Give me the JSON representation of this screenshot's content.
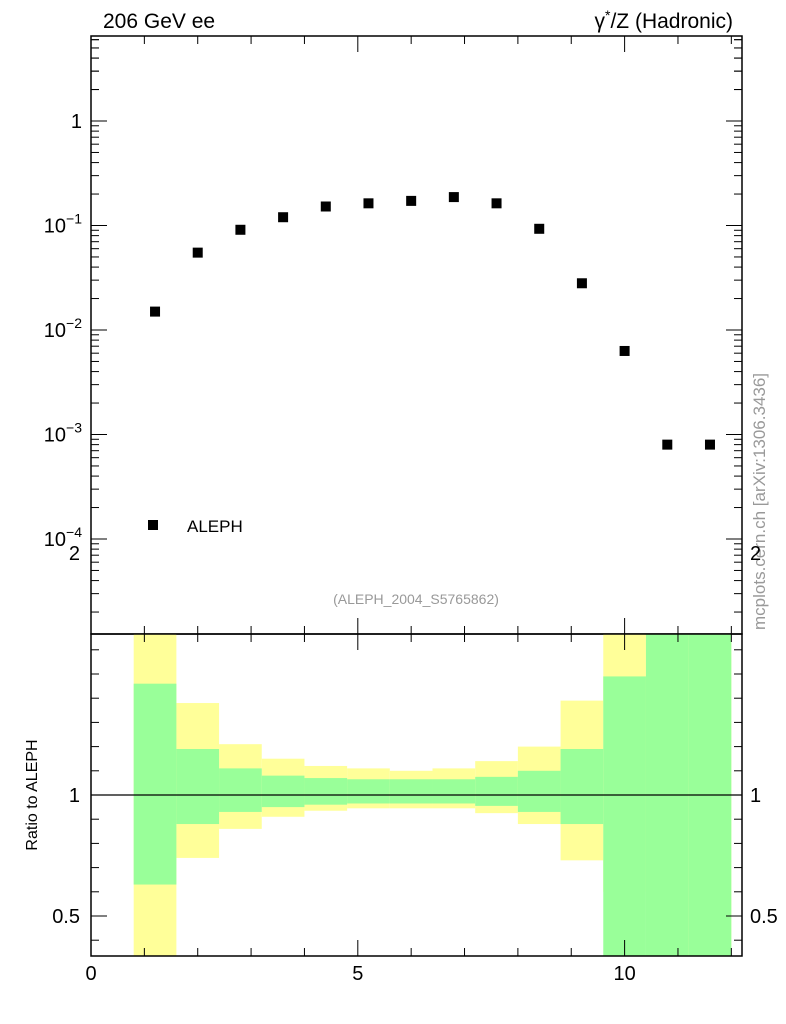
{
  "header": {
    "left": "206 GeV ee",
    "right_prefix": "γ",
    "right_sup": "*",
    "right_suffix": "/Z (Hadronic)"
  },
  "side_label": "mcplots.cern.ch [arXiv:1306.3436]",
  "analysis_id": "(ALEPH_2004_S5765862)",
  "colors": {
    "inner_band": "#99ff99",
    "outer_band": "#ffff99",
    "marker": "#000000"
  },
  "chart_data": [
    {
      "type": "scatter",
      "yscale": "log",
      "xlim": [
        0,
        12.2
      ],
      "ylim_exponent": [
        -5,
        0.8
      ],
      "y_tick_labels": [
        {
          "base": "1",
          "exp": ""
        },
        {
          "base": "10",
          "exp": "−1"
        },
        {
          "base": "10",
          "exp": "−2"
        },
        {
          "base": "10",
          "exp": "−3"
        },
        {
          "base": "10",
          "exp": "−4"
        }
      ],
      "legend": {
        "label": "ALEPH",
        "position": "lower-left"
      },
      "x": [
        1.2,
        2.0,
        2.8,
        3.6,
        4.4,
        5.2,
        6.0,
        6.8,
        7.6,
        8.4,
        9.2,
        10.0,
        10.8,
        11.6
      ],
      "y": [
        0.015,
        0.055,
        0.091,
        0.12,
        0.152,
        0.163,
        0.172,
        0.187,
        0.163,
        0.093,
        0.028,
        0.0063,
        0.0008,
        0.0008
      ]
    },
    {
      "type": "area",
      "ylabel": "Ratio to ALEPH",
      "ylim": [
        0.33,
        2.25
      ],
      "xlim": [
        0,
        12.2
      ],
      "x_tick_labels": [
        "0",
        "5",
        "10"
      ],
      "y_tick_labels": [
        "0.5",
        "1",
        "2"
      ],
      "reference_line": 1,
      "bin_edges": [
        0.8,
        1.6,
        2.4,
        3.2,
        4.0,
        4.8,
        5.6,
        6.4,
        7.2,
        8.0,
        8.8,
        9.6,
        10.4,
        11.2,
        12.0
      ],
      "inner_band_lo": [
        0.63,
        0.88,
        0.93,
        0.95,
        0.96,
        0.965,
        0.965,
        0.965,
        0.955,
        0.93,
        0.88,
        0.33,
        0.33,
        0.33
      ],
      "inner_band_hi": [
        1.46,
        1.19,
        1.11,
        1.08,
        1.07,
        1.065,
        1.065,
        1.065,
        1.075,
        1.1,
        1.19,
        1.49,
        2.25,
        1.97
      ],
      "outer_band_lo": [
        0.33,
        0.74,
        0.86,
        0.91,
        0.935,
        0.945,
        0.945,
        0.945,
        0.925,
        0.88,
        0.73,
        0.6,
        0.33,
        0.33
      ],
      "outer_band_hi": [
        1.8,
        1.38,
        1.21,
        1.15,
        1.12,
        1.11,
        1.1,
        1.11,
        1.14,
        1.2,
        1.39,
        1.86,
        2.25,
        2.25
      ]
    }
  ]
}
